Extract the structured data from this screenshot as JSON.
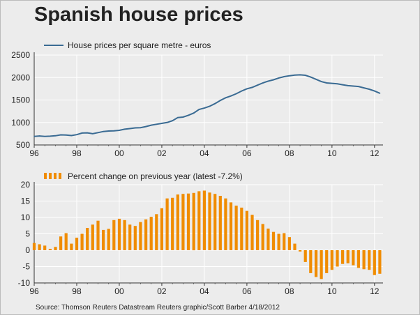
{
  "header": {
    "title": "Spanish house prices"
  },
  "footer": {
    "source": "Source: Thomson Reuters Datastream Reuters graphic/Scott Barber 4/18/2012"
  },
  "colors": {
    "line": "#3a6b93",
    "bar": "#f08c00",
    "background": "#ececec",
    "grid": "#ffffff"
  },
  "chart_data": [
    {
      "type": "line",
      "title": "",
      "legend": {
        "label": "House prices per square metre - euros",
        "placement": "top-left"
      },
      "xlabel": "",
      "ylabel": "",
      "x_ticks": [
        "96",
        "98",
        "00",
        "02",
        "04",
        "06",
        "08",
        "10",
        "12"
      ],
      "xlim": [
        1996,
        2012.4
      ],
      "ylim": [
        500,
        2500
      ],
      "y_ticks": [
        500,
        1000,
        1500,
        2000,
        2500
      ],
      "grid": true,
      "series": [
        {
          "name": "House prices per square metre - euros",
          "x": [
            1996.0,
            1996.25,
            1996.5,
            1996.75,
            1997.0,
            1997.25,
            1997.5,
            1997.75,
            1998.0,
            1998.25,
            1998.5,
            1998.75,
            1999.0,
            1999.25,
            1999.5,
            1999.75,
            2000.0,
            2000.25,
            2000.5,
            2000.75,
            2001.0,
            2001.25,
            2001.5,
            2001.75,
            2002.0,
            2002.25,
            2002.5,
            2002.75,
            2003.0,
            2003.25,
            2003.5,
            2003.75,
            2004.0,
            2004.25,
            2004.5,
            2004.75,
            2005.0,
            2005.25,
            2005.5,
            2005.75,
            2006.0,
            2006.25,
            2006.5,
            2006.75,
            2007.0,
            2007.25,
            2007.5,
            2007.75,
            2008.0,
            2008.25,
            2008.5,
            2008.75,
            2009.0,
            2009.25,
            2009.5,
            2009.75,
            2010.0,
            2010.25,
            2010.5,
            2010.75,
            2011.0,
            2011.25,
            2011.5,
            2011.75,
            2012.0,
            2012.25
          ],
          "values": [
            690,
            700,
            690,
            695,
            705,
            725,
            720,
            710,
            730,
            765,
            770,
            750,
            775,
            800,
            810,
            815,
            825,
            850,
            865,
            880,
            885,
            910,
            940,
            960,
            980,
            1000,
            1040,
            1110,
            1120,
            1160,
            1210,
            1290,
            1320,
            1360,
            1420,
            1490,
            1550,
            1590,
            1640,
            1700,
            1750,
            1780,
            1830,
            1880,
            1920,
            1950,
            1990,
            2020,
            2040,
            2055,
            2060,
            2050,
            2010,
            1960,
            1910,
            1880,
            1870,
            1860,
            1840,
            1820,
            1810,
            1800,
            1770,
            1740,
            1700,
            1650
          ]
        }
      ]
    },
    {
      "type": "bar",
      "title": "",
      "legend": {
        "label": "Percent change on previous year (latest -7.2%)",
        "placement": "top-left"
      },
      "xlabel": "",
      "ylabel": "",
      "x_ticks": [
        "96",
        "98",
        "00",
        "02",
        "04",
        "06",
        "08",
        "10",
        "12"
      ],
      "xlim": [
        1996,
        2012.4
      ],
      "ylim": [
        -10,
        20
      ],
      "y_ticks": [
        -10,
        -5,
        0,
        5,
        10,
        15,
        20
      ],
      "grid": true,
      "series": [
        {
          "name": "Percent change on previous year (latest -7.2%)",
          "x": [
            1996.0,
            1996.25,
            1996.5,
            1996.75,
            1997.0,
            1997.25,
            1997.5,
            1997.75,
            1998.0,
            1998.25,
            1998.5,
            1998.75,
            1999.0,
            1999.25,
            1999.5,
            1999.75,
            2000.0,
            2000.25,
            2000.5,
            2000.75,
            2001.0,
            2001.25,
            2001.5,
            2001.75,
            2002.0,
            2002.25,
            2002.5,
            2002.75,
            2003.0,
            2003.25,
            2003.5,
            2003.75,
            2004.0,
            2004.25,
            2004.5,
            2004.75,
            2005.0,
            2005.25,
            2005.5,
            2005.75,
            2006.0,
            2006.25,
            2006.5,
            2006.75,
            2007.0,
            2007.25,
            2007.5,
            2007.75,
            2008.0,
            2008.25,
            2008.5,
            2008.75,
            2009.0,
            2009.25,
            2009.5,
            2009.75,
            2010.0,
            2010.25,
            2010.5,
            2010.75,
            2011.0,
            2011.25,
            2011.5,
            2011.75,
            2012.0,
            2012.25
          ],
          "values": [
            2.2,
            1.8,
            1.4,
            0.4,
            1.0,
            4.2,
            5.2,
            2.0,
            3.8,
            5.0,
            6.8,
            7.8,
            9.0,
            6.2,
            6.5,
            9.2,
            9.6,
            9.2,
            7.8,
            7.4,
            8.6,
            9.4,
            10.2,
            11.0,
            12.8,
            15.8,
            16.0,
            17.0,
            17.2,
            17.3,
            17.5,
            18.0,
            18.2,
            17.6,
            17.2,
            16.6,
            15.8,
            14.6,
            13.6,
            13.0,
            12.0,
            10.8,
            9.2,
            8.0,
            6.6,
            5.6,
            5.0,
            5.2,
            4.0,
            2.0,
            -0.4,
            -3.6,
            -7.0,
            -8.2,
            -8.8,
            -7.0,
            -6.0,
            -5.0,
            -4.2,
            -4.0,
            -4.6,
            -5.4,
            -5.8,
            -6.0,
            -7.6,
            -7.2
          ]
        }
      ]
    }
  ]
}
